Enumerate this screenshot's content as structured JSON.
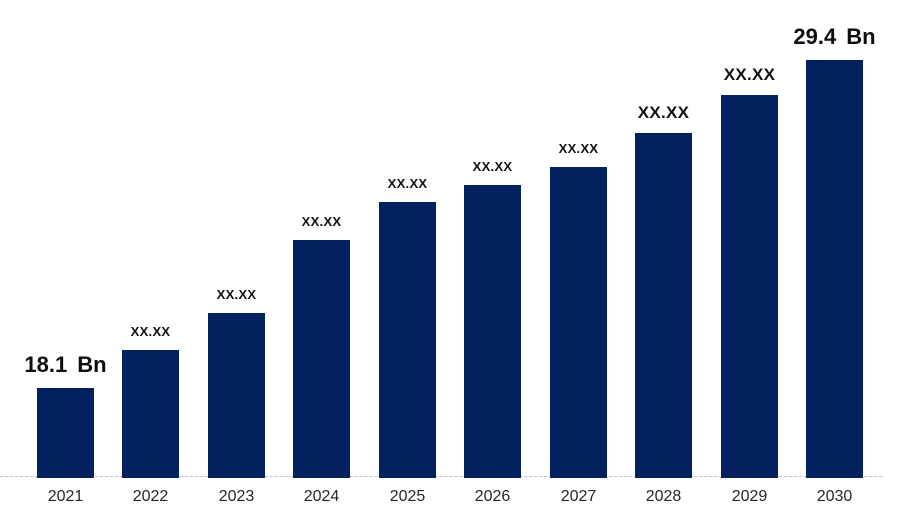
{
  "chart_data": {
    "type": "bar",
    "title": "",
    "xlabel": "",
    "ylabel": "",
    "categories": [
      "2021",
      "2022",
      "2023",
      "2024",
      "2025",
      "2026",
      "2027",
      "2028",
      "2029",
      "2030"
    ],
    "values": [
      18.1,
      19.4,
      20.7,
      23.2,
      24.5,
      25.1,
      25.7,
      26.9,
      28.2,
      29.4
    ],
    "bar_labels": [
      "18.1 Bn",
      "XX.XX",
      "XX.XX",
      "XX.XX",
      "XX.XX",
      "XX.XX",
      "XX.XX",
      "XX.XX",
      "XX.XX",
      "29.4 Bn"
    ],
    "label_styles": [
      "large",
      "small",
      "small",
      "small",
      "small",
      "small",
      "small",
      "medium",
      "medium",
      "large"
    ],
    "unit": "Bn",
    "bar_color": "#02215E",
    "axis_line_color": "#BFBFBF",
    "text_color": "#111111",
    "tick_label_color": "#262626",
    "implied_baseline_value": 15,
    "ylim": [
      15,
      29.4
    ],
    "grid": false,
    "legend": "none",
    "y_axis_visible": false
  }
}
